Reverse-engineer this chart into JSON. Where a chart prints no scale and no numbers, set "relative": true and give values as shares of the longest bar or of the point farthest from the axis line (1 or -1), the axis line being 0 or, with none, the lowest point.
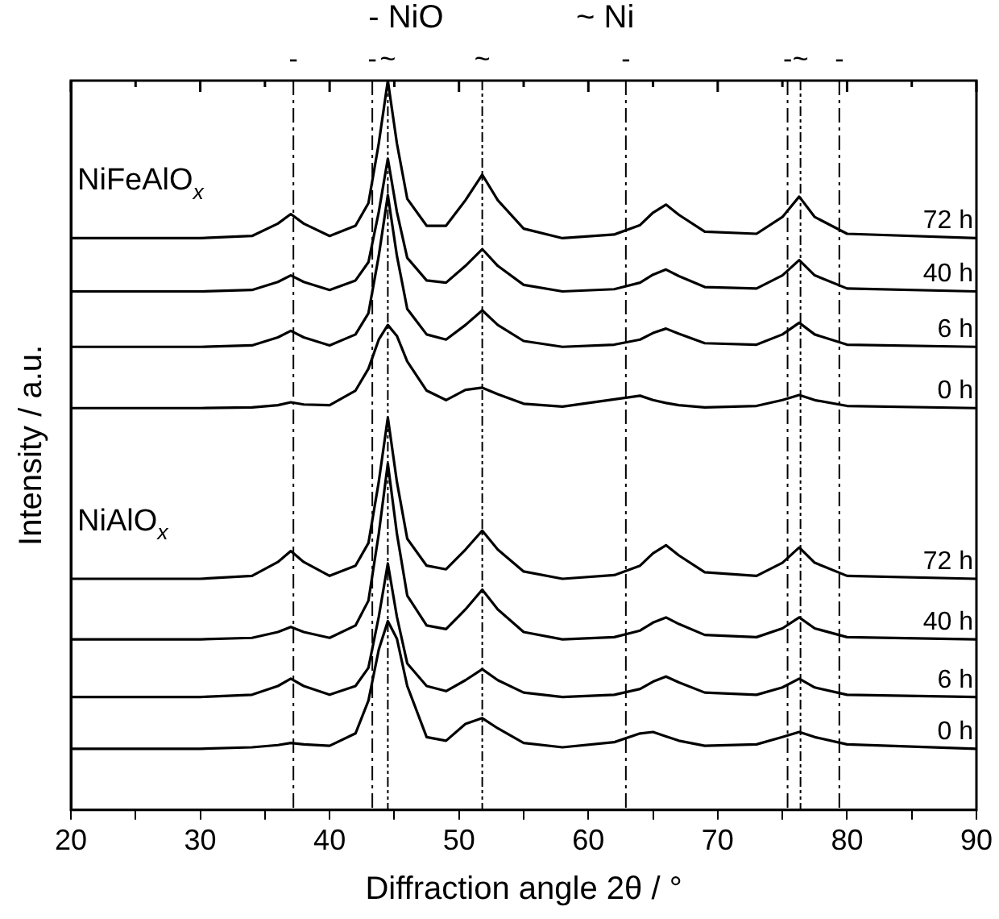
{
  "chart_data": {
    "type": "line",
    "relative": true,
    "xlabel": "Diffraction angle 2θ / °",
    "ylabel": "Intensity / a.u.",
    "xlim": [
      20,
      90
    ],
    "xticks": [
      20,
      {
        "value": 25,
        "label": null
      },
      30,
      {
        "value": 35,
        "label": null
      },
      40,
      {
        "value": 45,
        "label": null
      },
      50,
      {
        "value": 55,
        "label": null
      },
      60,
      {
        "value": 65,
        "label": null
      },
      70,
      {
        "value": 75,
        "label": null
      },
      80,
      {
        "value": 85,
        "label": null
      },
      90
    ],
    "legend": false,
    "marker": "none",
    "line_style": "solid",
    "grid": false,
    "x": [
      20,
      30,
      34,
      36,
      37,
      38,
      40,
      42,
      43,
      43.8,
      44.5,
      45.2,
      46,
      47.5,
      49,
      50.5,
      51.8,
      53,
      55,
      58,
      62,
      64,
      65,
      66,
      67,
      69,
      73,
      75,
      76.3,
      77.5,
      80,
      90
    ],
    "series": [
      {
        "name": "72 h",
        "color": "#000000",
        "values": [
          0.784,
          0.784,
          0.787,
          0.804,
          0.817,
          0.804,
          0.787,
          0.801,
          0.832,
          0.914,
          1.0,
          0.914,
          0.838,
          0.801,
          0.801,
          0.836,
          0.871,
          0.836,
          0.797,
          0.784,
          0.789,
          0.802,
          0.819,
          0.83,
          0.816,
          0.793,
          0.79,
          0.813,
          0.841,
          0.813,
          0.79,
          0.784
        ]
      },
      {
        "name": "40 h",
        "color": "#000000",
        "values": [
          0.711,
          0.711,
          0.713,
          0.724,
          0.733,
          0.724,
          0.713,
          0.726,
          0.751,
          0.82,
          0.893,
          0.82,
          0.757,
          0.726,
          0.723,
          0.746,
          0.769,
          0.746,
          0.72,
          0.711,
          0.714,
          0.723,
          0.734,
          0.741,
          0.732,
          0.717,
          0.715,
          0.733,
          0.754,
          0.733,
          0.715,
          0.711
        ]
      },
      {
        "name": "6 h",
        "color": "#000000",
        "values": [
          0.635,
          0.635,
          0.637,
          0.648,
          0.657,
          0.648,
          0.637,
          0.652,
          0.681,
          0.76,
          0.843,
          0.76,
          0.687,
          0.652,
          0.645,
          0.665,
          0.685,
          0.665,
          0.643,
          0.635,
          0.638,
          0.645,
          0.654,
          0.66,
          0.653,
          0.64,
          0.638,
          0.652,
          0.668,
          0.652,
          0.638,
          0.635
        ]
      },
      {
        "name": "0 h",
        "color": "#000000",
        "values": [
          0.551,
          0.551,
          0.552,
          0.555,
          0.559,
          0.556,
          0.555,
          0.575,
          0.605,
          0.645,
          0.665,
          0.65,
          0.615,
          0.575,
          0.562,
          0.576,
          0.579,
          0.57,
          0.557,
          0.553,
          0.563,
          0.568,
          0.562,
          0.558,
          0.555,
          0.552,
          0.554,
          0.562,
          0.569,
          0.562,
          0.554,
          0.551
        ]
      },
      {
        "name": "72 h",
        "color": "#000000",
        "values": [
          0.317,
          0.317,
          0.321,
          0.34,
          0.355,
          0.34,
          0.321,
          0.335,
          0.366,
          0.45,
          0.538,
          0.45,
          0.372,
          0.335,
          0.33,
          0.357,
          0.383,
          0.357,
          0.327,
          0.317,
          0.322,
          0.335,
          0.352,
          0.363,
          0.349,
          0.326,
          0.321,
          0.339,
          0.36,
          0.339,
          0.321,
          0.317
        ]
      },
      {
        "name": "40 h",
        "color": "#000000",
        "values": [
          0.234,
          0.234,
          0.236,
          0.244,
          0.251,
          0.244,
          0.236,
          0.253,
          0.287,
          0.379,
          0.475,
          0.379,
          0.294,
          0.253,
          0.248,
          0.275,
          0.302,
          0.275,
          0.244,
          0.234,
          0.237,
          0.246,
          0.257,
          0.264,
          0.255,
          0.24,
          0.237,
          0.249,
          0.264,
          0.249,
          0.237,
          0.234
        ]
      },
      {
        "name": "6 h",
        "color": "#000000",
        "values": [
          0.155,
          0.155,
          0.158,
          0.17,
          0.18,
          0.17,
          0.158,
          0.17,
          0.195,
          0.265,
          0.338,
          0.265,
          0.201,
          0.17,
          0.163,
          0.178,
          0.193,
          0.178,
          0.161,
          0.155,
          0.158,
          0.166,
          0.176,
          0.183,
          0.175,
          0.161,
          0.158,
          0.168,
          0.18,
          0.168,
          0.158,
          0.155
        ]
      },
      {
        "name": "0 h",
        "color": "#000000",
        "values": [
          0.084,
          0.084,
          0.086,
          0.089,
          0.092,
          0.09,
          0.088,
          0.105,
          0.15,
          0.22,
          0.259,
          0.235,
          0.17,
          0.1,
          0.095,
          0.118,
          0.126,
          0.112,
          0.092,
          0.086,
          0.093,
          0.105,
          0.107,
          0.101,
          0.095,
          0.088,
          0.09,
          0.1,
          0.107,
          0.1,
          0.09,
          0.084
        ]
      }
    ],
    "ref_lines": [
      {
        "axis": "x",
        "value": 37.2,
        "label": "-",
        "color": "#000000",
        "line_style": "dashed"
      },
      {
        "axis": "x",
        "value": 43.3,
        "label": "-",
        "color": "#000000",
        "line_style": "dashed"
      },
      {
        "axis": "x",
        "value": 44.5,
        "label": "~",
        "color": "#000000",
        "line_style": "dotted"
      },
      {
        "axis": "x",
        "value": 51.8,
        "label": "~",
        "color": "#000000",
        "line_style": "dotted"
      },
      {
        "axis": "x",
        "value": 62.9,
        "label": "-",
        "color": "#000000",
        "line_style": "dashed"
      },
      {
        "axis": "x",
        "value": 75.4,
        "label": "-",
        "color": "#000000",
        "line_style": "dashed"
      },
      {
        "axis": "x",
        "value": 76.4,
        "label": "~",
        "color": "#000000",
        "line_style": "dotted"
      },
      {
        "axis": "x",
        "value": 79.4,
        "label": "-",
        "color": "#000000",
        "line_style": "dashed"
      }
    ],
    "annotations": [
      "- NiO",
      "~ Ni",
      "NiFeAlO$_{x}$",
      "NiAlO$_{x}$"
    ]
  }
}
